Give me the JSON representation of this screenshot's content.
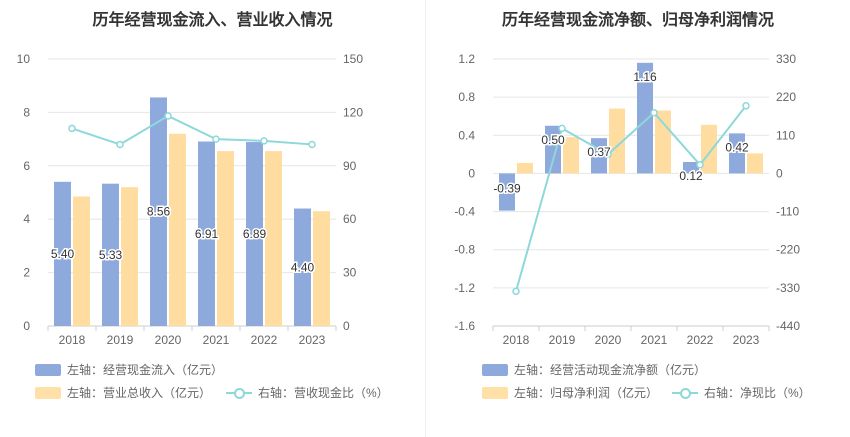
{
  "charts": [
    {
      "title": "历年经营现金流入、营业收入情况",
      "legend": [
        {
          "kind": "bar",
          "color": "#8eaadd",
          "label": "左轴：经营现金流入（亿元）"
        },
        {
          "kind": "bar",
          "color": "#ffe0a6",
          "label": "左轴：营业总收入（亿元）"
        },
        {
          "kind": "line",
          "color": "#8ed8da",
          "label": "右轴：营收现金比（%）"
        }
      ]
    },
    {
      "title": "历年经营现金流净额、归母净利润情况",
      "legend": [
        {
          "kind": "bar",
          "color": "#8eaadd",
          "label": "左轴：经营活动现金流净额（亿元）"
        },
        {
          "kind": "bar",
          "color": "#ffe0a6",
          "label": "左轴：归母净利润（亿元）"
        },
        {
          "kind": "line",
          "color": "#8ed8da",
          "label": "右轴：净现比（%）"
        }
      ]
    }
  ],
  "chart_data": [
    {
      "type": "bar",
      "title": "历年经营现金流入、营业收入情况",
      "categories": [
        "2018",
        "2019",
        "2020",
        "2021",
        "2022",
        "2023"
      ],
      "left_axis": {
        "min": 0,
        "max": 10,
        "ticks": [
          "0",
          "2",
          "4",
          "6",
          "8",
          "10"
        ]
      },
      "right_axis": {
        "min": 0,
        "max": 150,
        "ticks": [
          "0",
          "30",
          "60",
          "90",
          "120",
          "150"
        ]
      },
      "series": [
        {
          "name": "经营现金流入",
          "axis": "left",
          "type": "bar",
          "color": "#8eaadd",
          "values": [
            5.4,
            5.33,
            8.56,
            6.91,
            6.89,
            4.4
          ],
          "labels": [
            "5.40",
            "5.33",
            "8.56",
            "6.91",
            "6.89",
            "4.40"
          ]
        },
        {
          "name": "营业总收入",
          "axis": "left",
          "type": "bar",
          "color": "#ffd48e",
          "values": [
            4.85,
            5.2,
            7.2,
            6.55,
            6.55,
            4.3
          ]
        },
        {
          "name": "营收现金比",
          "axis": "right",
          "type": "line",
          "color": "#8ed8da",
          "values": [
            111,
            102,
            118,
            105,
            104,
            102
          ]
        }
      ],
      "grid": true
    },
    {
      "type": "bar",
      "title": "历年经营现金流净额、归母净利润情况",
      "categories": [
        "2018",
        "2019",
        "2020",
        "2021",
        "2022",
        "2023"
      ],
      "left_axis": {
        "min": -1.6,
        "max": 1.2,
        "ticks": [
          "-1.6",
          "-1.2",
          "-0.8",
          "-0.4",
          "0",
          "0.4",
          "0.8",
          "1.2"
        ]
      },
      "right_axis": {
        "min": -440,
        "max": 330,
        "ticks": [
          "-440",
          "-330",
          "-220",
          "-110",
          "0",
          "110",
          "220",
          "330"
        ]
      },
      "series": [
        {
          "name": "经营活动现金流净额",
          "axis": "left",
          "type": "bar",
          "color": "#8eaadd",
          "values": [
            -0.39,
            0.5,
            0.37,
            1.16,
            0.12,
            0.42
          ],
          "labels": [
            "-0.39",
            "0.50",
            "0.37",
            "1.16",
            "0.12",
            "0.42"
          ]
        },
        {
          "name": "归母净利润",
          "axis": "left",
          "type": "bar",
          "color": "#ffd48e",
          "values": [
            0.11,
            0.38,
            0.68,
            0.66,
            0.51,
            0.21
          ]
        },
        {
          "name": "净现比",
          "axis": "right",
          "type": "line",
          "color": "#8ed8da",
          "values": [
            -340,
            130,
            55,
            175,
            25,
            195
          ]
        }
      ],
      "grid": true
    }
  ]
}
